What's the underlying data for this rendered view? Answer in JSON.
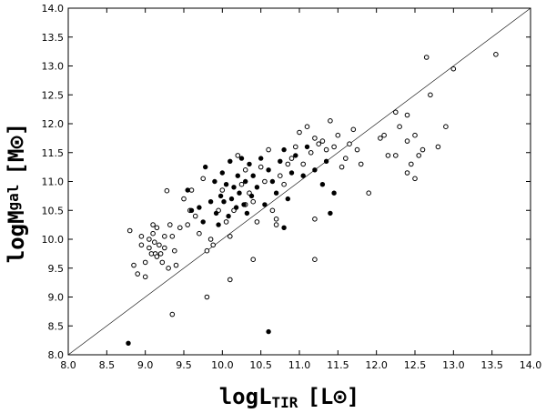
{
  "chart_data": {
    "type": "scatter",
    "title": "",
    "xlabel": {
      "prefix": "logL",
      "sub": "TIR",
      "unit": "[L",
      "unit_sym": "⊙",
      "unit_close": "]"
    },
    "ylabel": {
      "prefix": "logM",
      "sub": "gal",
      "unit": "[M",
      "unit_sym": "⊙",
      "unit_close": "]"
    },
    "xlim": [
      8.0,
      14.0
    ],
    "ylim": [
      8.0,
      14.0
    ],
    "grid": false,
    "xticks": [
      "8.0",
      "8.5",
      "9.0",
      "9.5",
      "10.0",
      "10.5",
      "11.0",
      "11.5",
      "12.0",
      "12.5",
      "13.0",
      "13.5",
      "14.0"
    ],
    "yticks": [
      "8.0",
      "8.5",
      "9.0",
      "9.5",
      "10.0",
      "10.5",
      "11.0",
      "11.5",
      "12.0",
      "12.5",
      "13.0",
      "13.5",
      "14.0"
    ],
    "reference_line": {
      "from": [
        8.0,
        8.0
      ],
      "to": [
        14.0,
        14.0
      ],
      "label": ""
    },
    "series": [
      {
        "marker": "open",
        "points": [
          [
            8.8,
            10.15
          ],
          [
            8.85,
            9.55
          ],
          [
            8.9,
            9.4
          ],
          [
            8.95,
            10.05
          ],
          [
            8.95,
            9.9
          ],
          [
            9.0,
            9.6
          ],
          [
            9.0,
            9.35
          ],
          [
            9.05,
            10.0
          ],
          [
            9.05,
            9.85
          ],
          [
            9.08,
            9.75
          ],
          [
            9.1,
            10.25
          ],
          [
            9.1,
            10.1
          ],
          [
            9.12,
            9.95
          ],
          [
            9.13,
            9.75
          ],
          [
            9.15,
            10.2
          ],
          [
            9.15,
            9.7
          ],
          [
            9.18,
            9.9
          ],
          [
            9.2,
            9.75
          ],
          [
            9.22,
            9.6
          ],
          [
            9.25,
            10.05
          ],
          [
            9.25,
            9.85
          ],
          [
            9.28,
            10.84
          ],
          [
            9.3,
            9.5
          ],
          [
            9.32,
            10.25
          ],
          [
            9.35,
            10.05
          ],
          [
            9.38,
            9.8
          ],
          [
            9.4,
            9.55
          ],
          [
            9.45,
            10.2
          ],
          [
            9.5,
            10.7
          ],
          [
            9.55,
            10.25
          ],
          [
            9.58,
            10.5
          ],
          [
            9.6,
            10.85
          ],
          [
            9.65,
            10.4
          ],
          [
            9.7,
            10.1
          ],
          [
            9.75,
            11.05
          ],
          [
            9.8,
            9.8
          ],
          [
            9.85,
            10.0
          ],
          [
            9.88,
            9.9
          ],
          [
            9.95,
            10.5
          ],
          [
            10.0,
            10.85
          ],
          [
            10.05,
            10.3
          ],
          [
            10.1,
            10.05
          ],
          [
            10.15,
            10.5
          ],
          [
            10.2,
            11.45
          ],
          [
            10.25,
            10.95
          ],
          [
            10.3,
            11.2
          ],
          [
            10.35,
            10.8
          ],
          [
            10.4,
            10.65
          ],
          [
            10.45,
            10.3
          ],
          [
            10.5,
            11.25
          ],
          [
            10.55,
            11.0
          ],
          [
            10.6,
            11.55
          ],
          [
            10.65,
            10.5
          ],
          [
            10.7,
            10.25
          ],
          [
            10.75,
            11.1
          ],
          [
            10.8,
            10.95
          ],
          [
            10.85,
            11.3
          ],
          [
            10.9,
            11.4
          ],
          [
            10.95,
            11.6
          ],
          [
            11.0,
            11.85
          ],
          [
            11.05,
            11.3
          ],
          [
            11.1,
            11.95
          ],
          [
            11.15,
            11.5
          ],
          [
            11.2,
            11.75
          ],
          [
            11.25,
            11.65
          ],
          [
            11.3,
            11.7
          ],
          [
            11.35,
            11.55
          ],
          [
            11.4,
            12.05
          ],
          [
            11.45,
            11.6
          ],
          [
            11.5,
            11.8
          ],
          [
            11.55,
            11.25
          ],
          [
            11.6,
            11.4
          ],
          [
            11.65,
            11.65
          ],
          [
            11.7,
            11.9
          ],
          [
            11.75,
            11.55
          ],
          [
            11.8,
            11.3
          ],
          [
            11.9,
            10.8
          ],
          [
            12.05,
            11.75
          ],
          [
            12.1,
            11.8
          ],
          [
            12.15,
            11.45
          ],
          [
            12.25,
            12.2
          ],
          [
            12.25,
            11.45
          ],
          [
            12.3,
            11.95
          ],
          [
            12.4,
            11.7
          ],
          [
            12.4,
            12.15
          ],
          [
            12.4,
            11.15
          ],
          [
            12.45,
            11.3
          ],
          [
            12.5,
            11.8
          ],
          [
            12.5,
            11.05
          ],
          [
            12.55,
            11.45
          ],
          [
            12.6,
            11.55
          ],
          [
            12.7,
            12.5
          ],
          [
            12.8,
            11.6
          ],
          [
            12.9,
            11.95
          ],
          [
            13.0,
            12.95
          ],
          [
            12.65,
            13.15
          ],
          [
            13.55,
            13.2
          ],
          [
            9.35,
            8.7
          ],
          [
            9.8,
            9.0
          ],
          [
            10.1,
            9.3
          ],
          [
            10.4,
            9.65
          ],
          [
            11.2,
            9.65
          ],
          [
            10.3,
            10.6
          ],
          [
            10.7,
            10.35
          ],
          [
            11.2,
            10.35
          ]
        ]
      },
      {
        "marker": "filled",
        "points": [
          [
            8.78,
            8.2
          ],
          [
            9.55,
            10.85
          ],
          [
            9.6,
            10.5
          ],
          [
            9.7,
            10.55
          ],
          [
            9.75,
            10.3
          ],
          [
            9.78,
            11.25
          ],
          [
            9.85,
            10.65
          ],
          [
            9.9,
            11.0
          ],
          [
            9.92,
            10.45
          ],
          [
            9.95,
            10.25
          ],
          [
            9.98,
            10.75
          ],
          [
            10.0,
            11.15
          ],
          [
            10.02,
            10.65
          ],
          [
            10.05,
            10.95
          ],
          [
            10.08,
            10.4
          ],
          [
            10.1,
            11.35
          ],
          [
            10.12,
            10.7
          ],
          [
            10.15,
            10.9
          ],
          [
            10.18,
            10.55
          ],
          [
            10.2,
            11.1
          ],
          [
            10.22,
            10.8
          ],
          [
            10.25,
            11.4
          ],
          [
            10.28,
            10.6
          ],
          [
            10.3,
            11.0
          ],
          [
            10.32,
            10.45
          ],
          [
            10.35,
            11.3
          ],
          [
            10.38,
            10.75
          ],
          [
            10.4,
            11.1
          ],
          [
            10.45,
            10.9
          ],
          [
            10.5,
            11.4
          ],
          [
            10.55,
            10.6
          ],
          [
            10.6,
            11.2
          ],
          [
            10.65,
            11.0
          ],
          [
            10.7,
            10.8
          ],
          [
            10.75,
            11.35
          ],
          [
            10.8,
            11.55
          ],
          [
            10.85,
            10.7
          ],
          [
            10.9,
            11.15
          ],
          [
            10.95,
            11.45
          ],
          [
            11.05,
            11.1
          ],
          [
            11.1,
            11.6
          ],
          [
            11.2,
            11.2
          ],
          [
            11.3,
            10.95
          ],
          [
            11.35,
            11.35
          ],
          [
            11.4,
            10.45
          ],
          [
            11.45,
            10.8
          ],
          [
            10.8,
            10.2
          ],
          [
            10.6,
            8.4
          ]
        ]
      }
    ]
  }
}
